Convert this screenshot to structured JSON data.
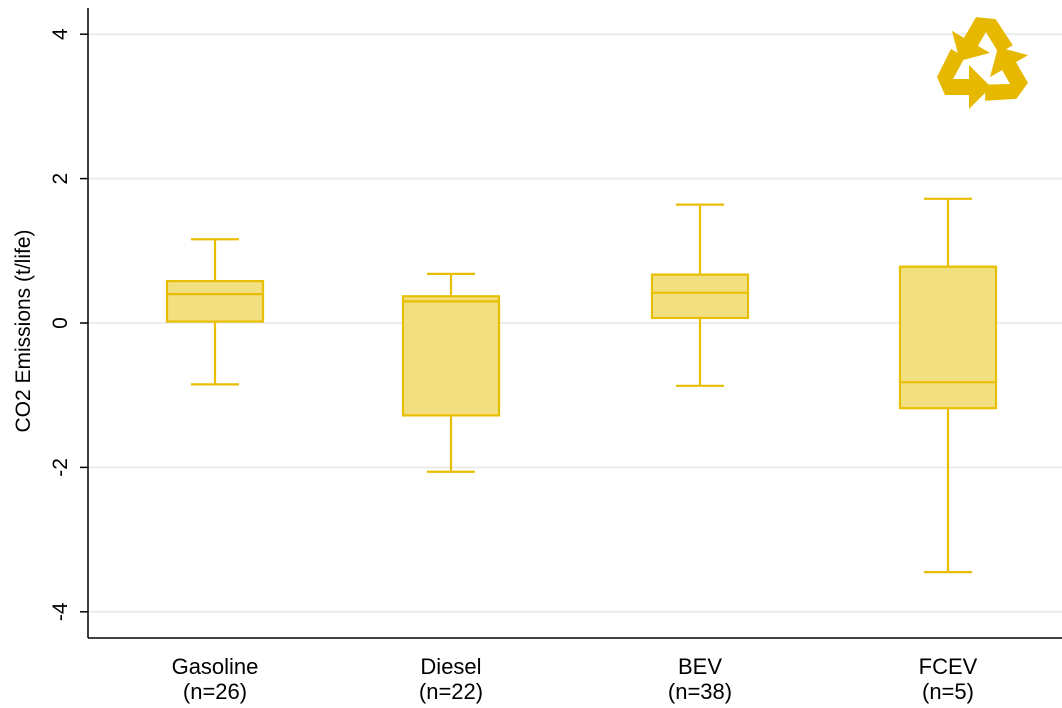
{
  "chart_data": {
    "type": "box",
    "title": "",
    "ylabel": "CO2 Emissions (t/life)",
    "xlabel": "",
    "ylim": [
      -4.4,
      4.4
    ],
    "yticks": [
      4,
      2,
      0,
      -2,
      -4
    ],
    "ytick_labels": [
      "4",
      "2",
      "0",
      "-2",
      "-4"
    ],
    "grid": true,
    "colors": {
      "box_fill": "#F2DF80",
      "box_stroke": "#E8BE00",
      "grid": "#ECECEC",
      "axis": "#000000",
      "logo": "#E6B800"
    },
    "logo_icon": "recycle-icon",
    "categories": [
      {
        "name": "Gasoline",
        "n_label": "(n=26)",
        "whisker_low": -0.85,
        "q1": 0.02,
        "median": 0.4,
        "q3": 0.58,
        "whisker_high": 1.16
      },
      {
        "name": "Diesel",
        "n_label": "(n=22)",
        "whisker_low": -2.06,
        "q1": -1.28,
        "median": 0.3,
        "q3": 0.37,
        "whisker_high": 0.68
      },
      {
        "name": "BEV",
        "n_label": "(n=38)",
        "whisker_low": -0.87,
        "q1": 0.07,
        "median": 0.42,
        "q3": 0.67,
        "whisker_high": 1.64
      },
      {
        "name": "FCEV",
        "n_label": "(n=5)",
        "whisker_low": -3.45,
        "q1": -1.18,
        "median": -0.82,
        "q3": 0.78,
        "whisker_high": 1.72
      }
    ]
  }
}
